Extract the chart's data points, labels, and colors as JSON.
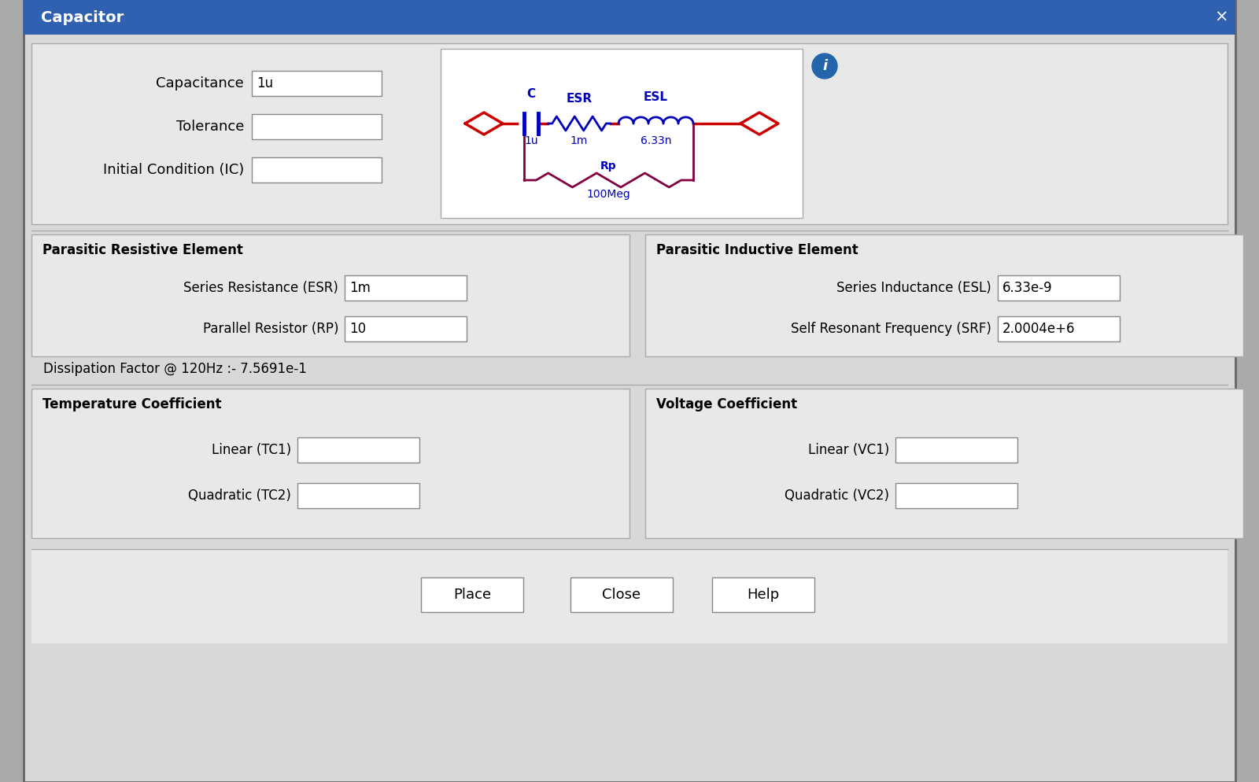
{
  "title": "Capacitor",
  "title_bar_color": "#3060B0",
  "title_text_color": "#FFFFFF",
  "bg_color": "#D8D8D8",
  "panel_bg": "#E8E8E8",
  "white": "#FFFFFF",
  "border_color": "#CCCCCC",
  "dark_border": "#888888",
  "text_color": "#000000",
  "blue_text": "#0000BB",
  "section_border": "#AAAAAA",
  "fields_left": [
    {
      "label": "Capacitance",
      "value": "1u"
    },
    {
      "label": "Tolerance",
      "value": ""
    },
    {
      "label": "Initial Condition (IC)",
      "value": ""
    }
  ],
  "parasitic_resistive_label": "Parasitic Resistive Element",
  "parasitic_resistive_fields": [
    {
      "label": "Series Resistance (ESR)",
      "value": "1m"
    },
    {
      "label": "Parallel Resistor (RP)",
      "value": "10"
    }
  ],
  "parasitic_inductive_label": "Parasitic Inductive Element",
  "parasitic_inductive_fields": [
    {
      "label": "Series Inductance (ESL)",
      "value": "6.33e-9"
    },
    {
      "label": "Self Resonant Frequency (SRF)",
      "value": "2.0004e+6"
    }
  ],
  "dissipation_label": "Dissipation Factor @ 120Hz :- 7.5691e-1",
  "temp_coeff_label": "Temperature Coefficient",
  "temp_coeff_fields": [
    {
      "label": "Linear (TC1)",
      "value": ""
    },
    {
      "label": "Quadratic (TC2)",
      "value": ""
    }
  ],
  "voltage_coeff_label": "Voltage Coefficient",
  "voltage_coeff_fields": [
    {
      "label": "Linear (VC1)",
      "value": ""
    },
    {
      "label": "Quadratic (VC2)",
      "value": ""
    }
  ],
  "buttons": [
    "Place",
    "Close",
    "Help"
  ],
  "close_x": "×",
  "red_color": "#CC0000",
  "blue_color": "#0000BB",
  "purple_color": "#800040"
}
